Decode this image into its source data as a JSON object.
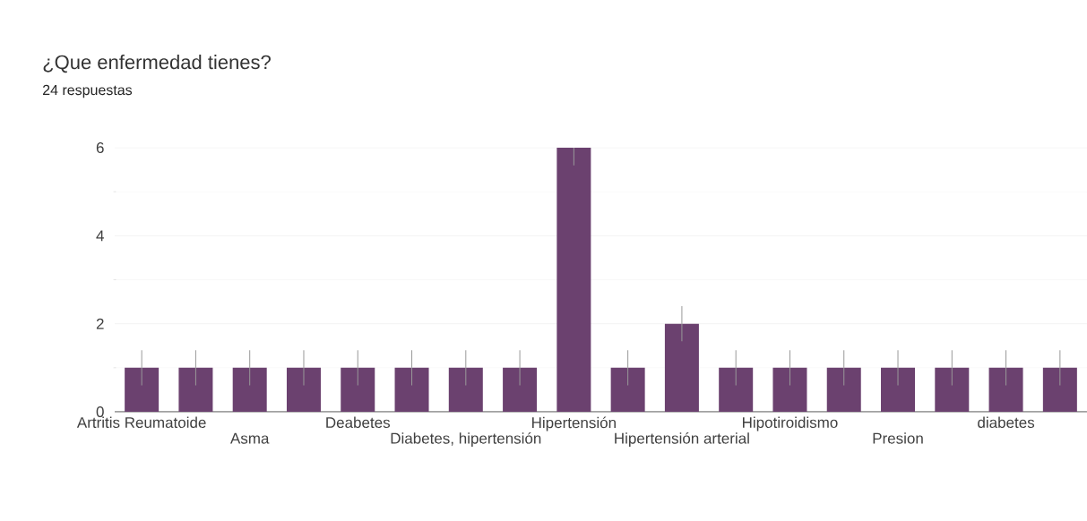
{
  "chart_data": {
    "type": "bar",
    "title": "¿Que enfermedad tienes?",
    "subtitle": "24 respuestas",
    "categories": [
      "Artritis Reumatoide",
      null,
      "Asma",
      null,
      "Deabetes",
      null,
      "Diabetes, hipertensión",
      null,
      "Hipertensión",
      null,
      "Hipertensión arterial",
      null,
      "Hipotiroidismo",
      null,
      "Presion",
      null,
      "diabetes",
      null
    ],
    "values": [
      1,
      1,
      1,
      1,
      1,
      1,
      1,
      1,
      6,
      1,
      2,
      1,
      1,
      1,
      1,
      1,
      1,
      1
    ],
    "errors": [
      [
        0.6,
        1.4
      ],
      [
        0.6,
        1.4
      ],
      [
        0.6,
        1.4
      ],
      [
        0.6,
        1.4
      ],
      [
        0.6,
        1.4
      ],
      [
        0.6,
        1.4
      ],
      [
        0.6,
        1.4
      ],
      [
        0.6,
        1.4
      ],
      [
        5.6,
        6
      ],
      [
        0.6,
        1.4
      ],
      [
        1.6,
        2.4
      ],
      [
        0.6,
        1.4
      ],
      [
        0.6,
        1.4
      ],
      [
        0.6,
        1.4
      ],
      [
        0.6,
        1.4
      ],
      [
        0.6,
        1.4
      ],
      [
        0.6,
        1.4
      ],
      [
        0.6,
        1.4
      ]
    ],
    "color": "#6b416f",
    "ylim": [
      0,
      6
    ],
    "yticks": [
      0,
      2,
      4,
      6
    ],
    "grid": "y"
  }
}
